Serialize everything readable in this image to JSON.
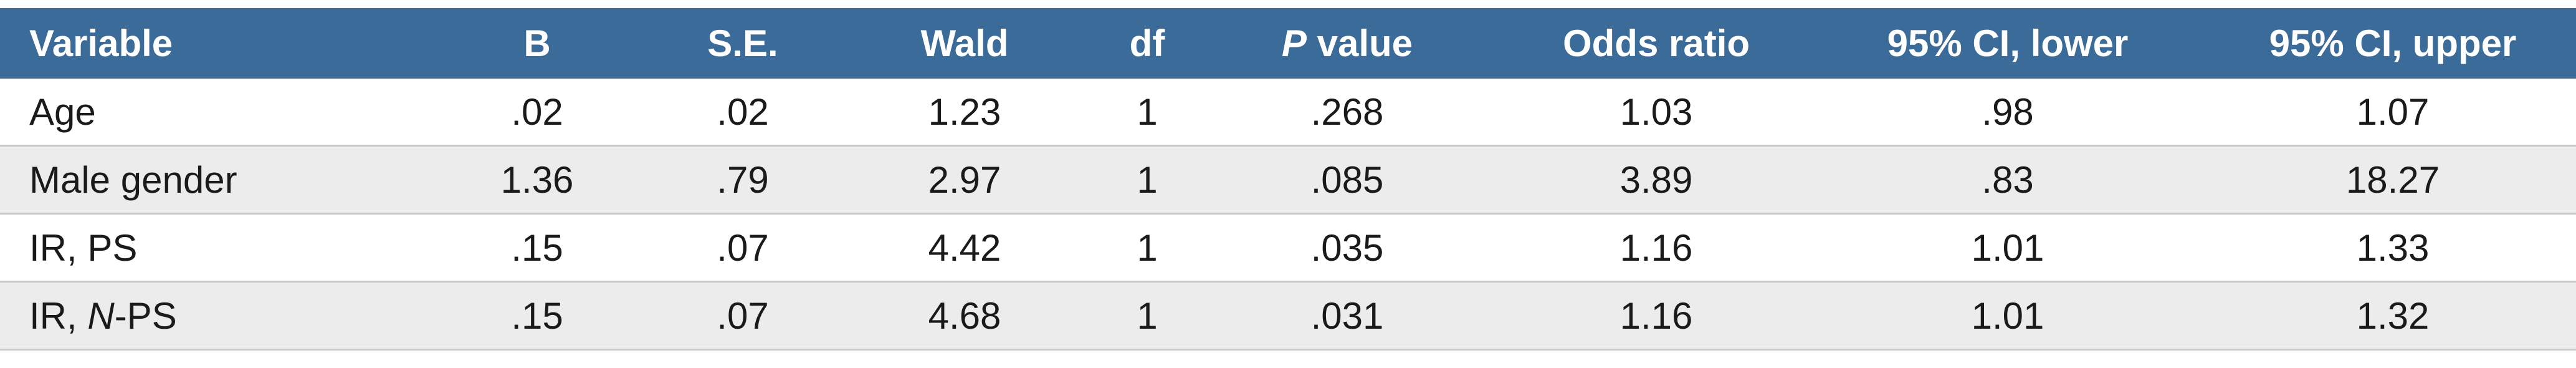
{
  "table": {
    "header": [
      "Variable",
      "B",
      "S.E.",
      "Wald",
      "df",
      {
        "parts": [
          {
            "text": "P",
            "italic": true
          },
          {
            "text": " value"
          }
        ]
      },
      "Odds ratio",
      "95% CI, lower",
      "95% CI, upper"
    ],
    "rows": [
      [
        "Age",
        ".02",
        ".02",
        "1.23",
        "1",
        ".268",
        "1.03",
        ".98",
        "1.07"
      ],
      [
        "Male gender",
        "1.36",
        ".79",
        "2.97",
        "1",
        ".085",
        "3.89",
        ".83",
        "18.27"
      ],
      [
        "IR, PS",
        ".15",
        ".07",
        "4.42",
        "1",
        ".035",
        "1.16",
        "1.01",
        "1.33"
      ],
      [
        {
          "parts": [
            {
              "text": "IR, "
            },
            {
              "text": "N",
              "italic": true
            },
            {
              "text": "-PS"
            }
          ]
        },
        ".15",
        ".07",
        "4.68",
        "1",
        ".031",
        "1.16",
        "1.01",
        "1.32"
      ]
    ]
  }
}
